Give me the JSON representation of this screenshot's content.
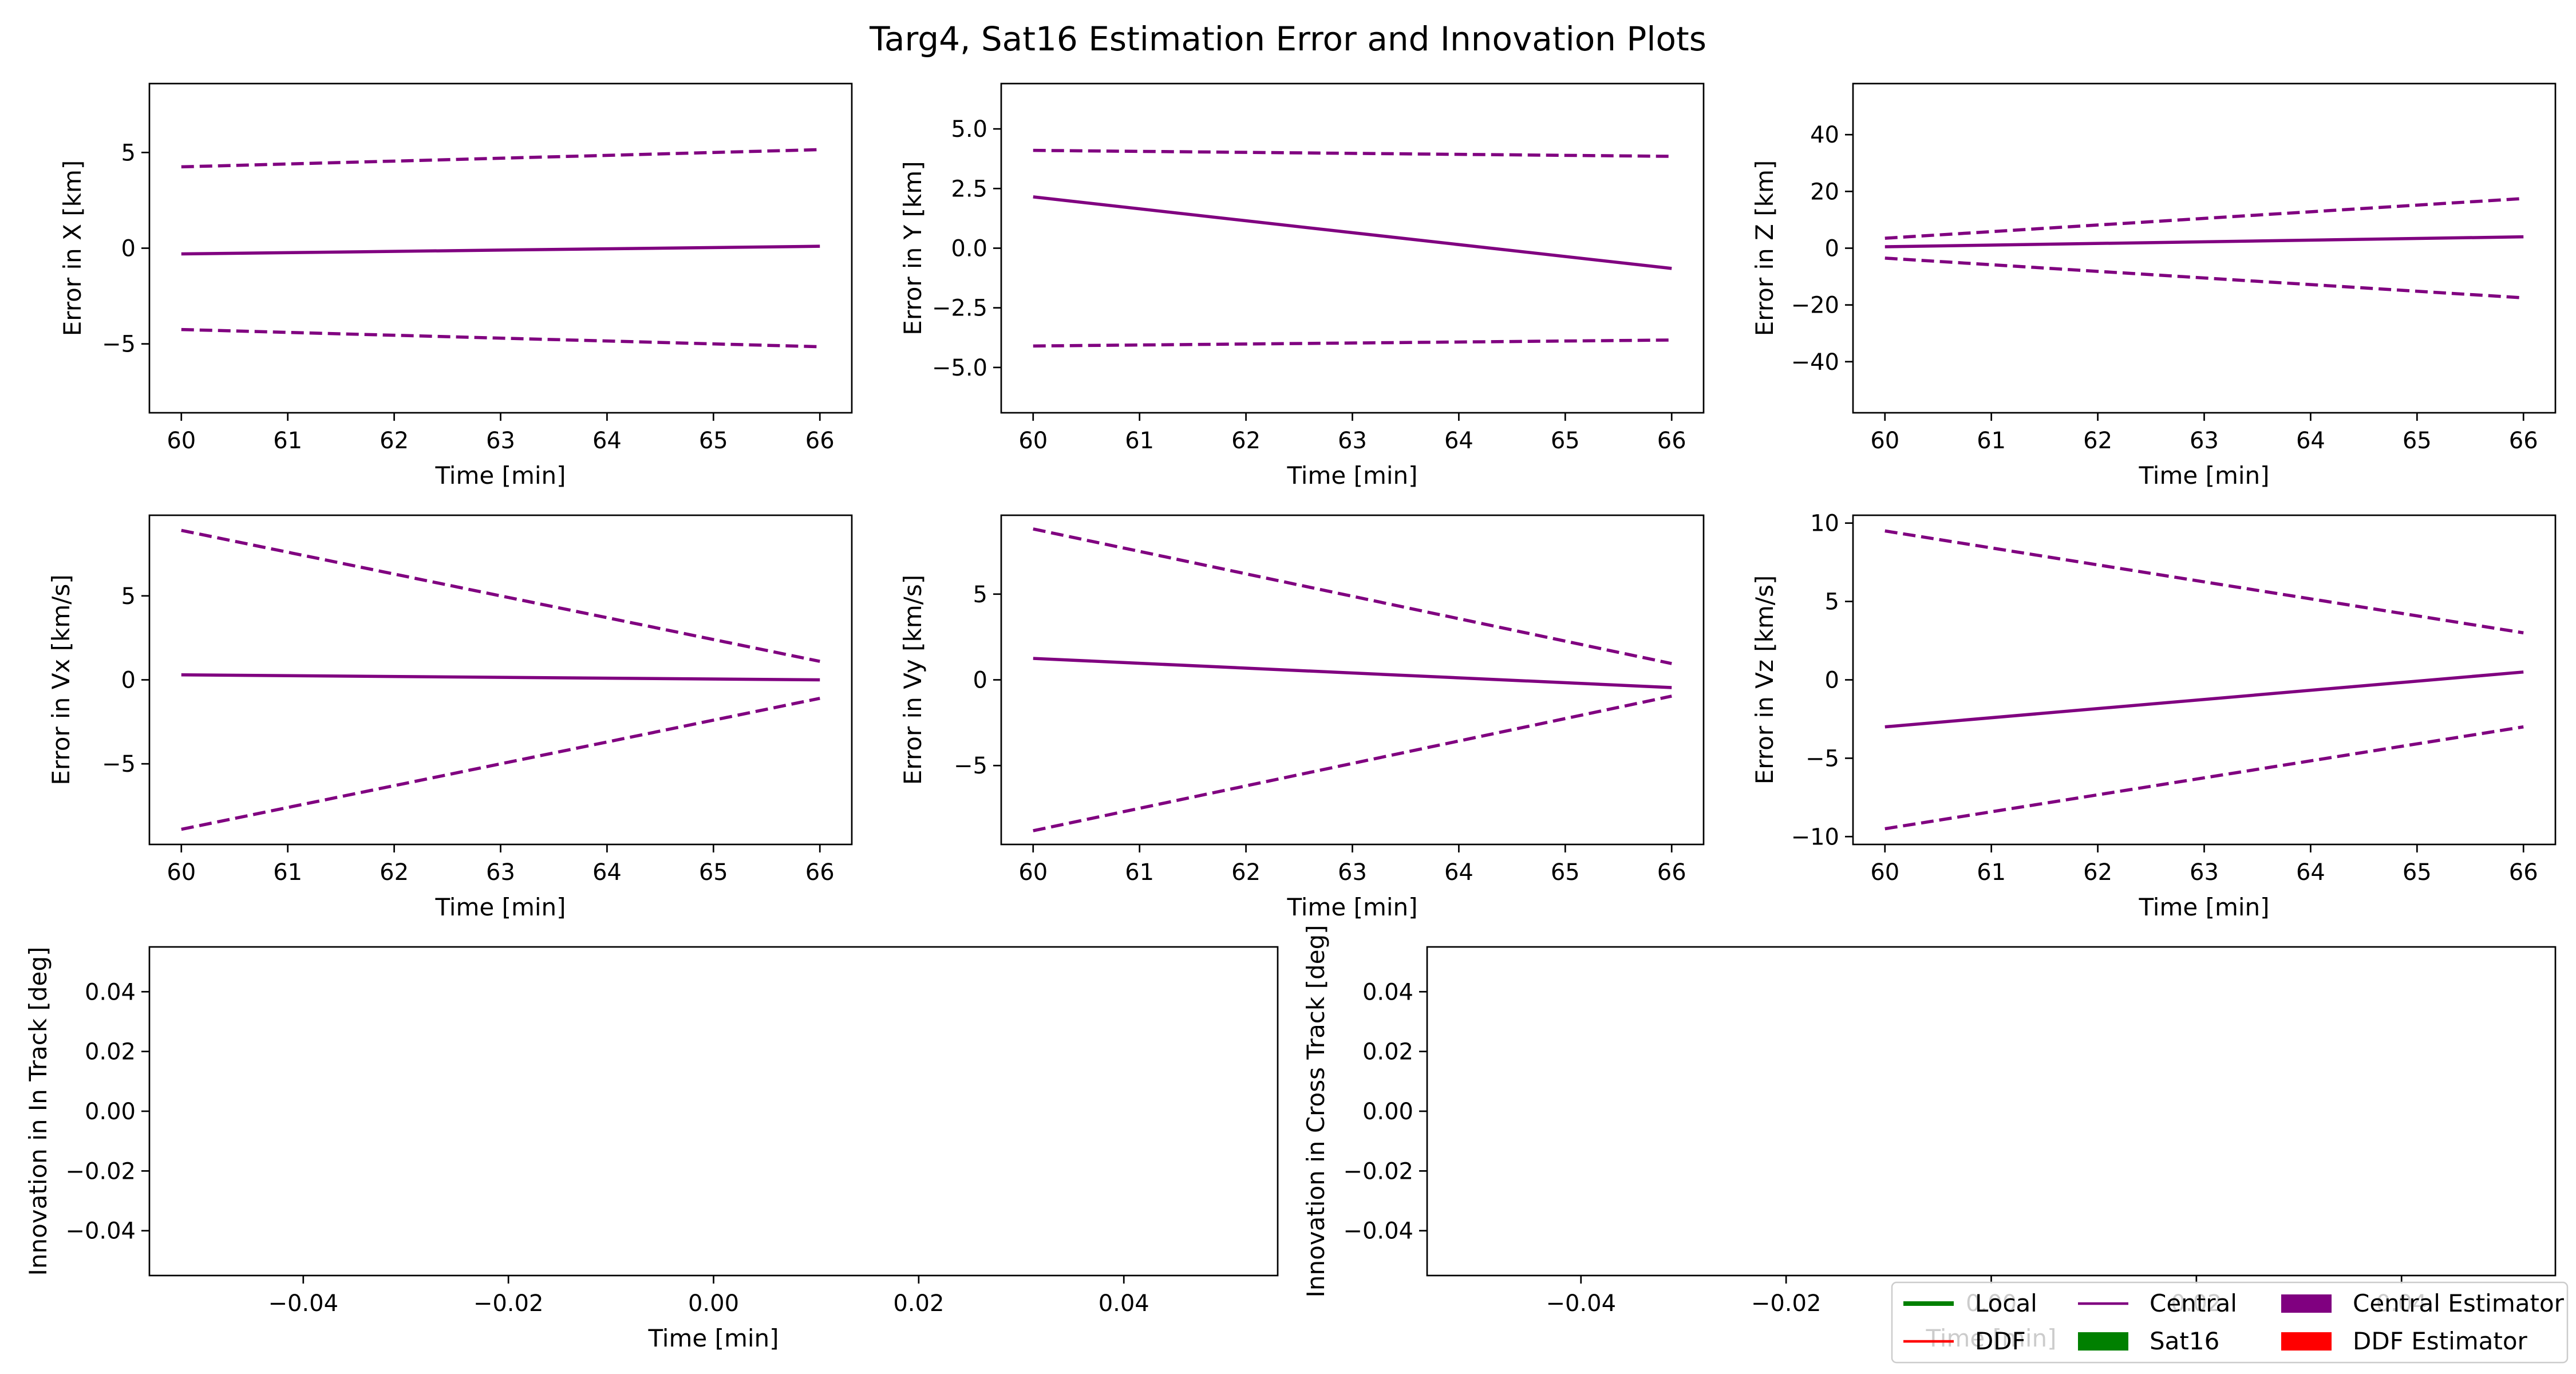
{
  "figure": {
    "title": "Targ4, Sat16 Estimation Error and Innovation Plots"
  },
  "colors": {
    "central": "#800080",
    "local": "#008000",
    "ddf": "#ff0000"
  },
  "chart_data": [
    {
      "id": "err-x",
      "type": "line",
      "xlabel": "Time [min]",
      "ylabel": "Error in X [km]",
      "xlim": [
        59.7,
        66.3
      ],
      "ylim": [
        -8.6,
        8.6
      ],
      "xticks": [
        60,
        61,
        62,
        63,
        64,
        65,
        66
      ],
      "yticks": [
        -5,
        0,
        5
      ],
      "series": [
        {
          "name": "Central",
          "color": "#800080",
          "style": "solid",
          "x": [
            60,
            66
          ],
          "y": [
            -0.3,
            0.1
          ]
        },
        {
          "color": "#800080",
          "style": "dashed",
          "x": [
            60,
            66
          ],
          "y": [
            4.25,
            5.15
          ]
        },
        {
          "color": "#800080",
          "style": "dashed",
          "x": [
            60,
            66
          ],
          "y": [
            -4.25,
            -5.15
          ]
        }
      ]
    },
    {
      "id": "err-y",
      "type": "line",
      "xlabel": "Time [min]",
      "ylabel": "Error in Y [km]",
      "xlim": [
        59.7,
        66.3
      ],
      "ylim": [
        -6.9,
        6.9
      ],
      "xticks": [
        60,
        61,
        62,
        63,
        64,
        65,
        66
      ],
      "yticks": [
        -5.0,
        -2.5,
        0.0,
        2.5,
        5.0
      ],
      "ytick_labels": [
        "−5.0",
        "−2.5",
        "0.0",
        "2.5",
        "5.0"
      ],
      "series": [
        {
          "name": "Central",
          "color": "#800080",
          "style": "solid",
          "x": [
            60,
            66
          ],
          "y": [
            2.15,
            -0.85
          ]
        },
        {
          "color": "#800080",
          "style": "dashed",
          "x": [
            60,
            66
          ],
          "y": [
            4.1,
            3.85
          ]
        },
        {
          "color": "#800080",
          "style": "dashed",
          "x": [
            60,
            66
          ],
          "y": [
            -4.1,
            -3.85
          ]
        }
      ]
    },
    {
      "id": "err-z",
      "type": "line",
      "xlabel": "Time [min]",
      "ylabel": "Error in Z [km]",
      "xlim": [
        59.7,
        66.3
      ],
      "ylim": [
        -58,
        58
      ],
      "xticks": [
        60,
        61,
        62,
        63,
        64,
        65,
        66
      ],
      "yticks": [
        -40,
        -20,
        0,
        20,
        40
      ],
      "series": [
        {
          "name": "Central",
          "color": "#800080",
          "style": "solid",
          "x": [
            60,
            66
          ],
          "y": [
            0.5,
            4
          ]
        },
        {
          "color": "#800080",
          "style": "dashed",
          "x": [
            60,
            66
          ],
          "y": [
            3.5,
            17.5
          ]
        },
        {
          "color": "#800080",
          "style": "dashed",
          "x": [
            60,
            66
          ],
          "y": [
            -3.5,
            -17.5
          ]
        }
      ]
    },
    {
      "id": "err-vx",
      "type": "line",
      "xlabel": "Time [min]",
      "ylabel": "Error in Vx [km/s]",
      "xlim": [
        59.7,
        66.3
      ],
      "ylim": [
        -9.8,
        9.8
      ],
      "xticks": [
        60,
        61,
        62,
        63,
        64,
        65,
        66
      ],
      "yticks": [
        -5,
        0,
        5
      ],
      "series": [
        {
          "name": "Central",
          "color": "#800080",
          "style": "solid",
          "x": [
            60,
            66
          ],
          "y": [
            0.3,
            0.0
          ]
        },
        {
          "color": "#800080",
          "style": "dashed",
          "x": [
            60,
            66
          ],
          "y": [
            8.9,
            1.1
          ]
        },
        {
          "color": "#800080",
          "style": "dashed",
          "x": [
            60,
            66
          ],
          "y": [
            -8.9,
            -1.1
          ]
        }
      ]
    },
    {
      "id": "err-vy",
      "type": "line",
      "xlabel": "Time [min]",
      "ylabel": "Error in Vy [km/s]",
      "xlim": [
        59.7,
        66.3
      ],
      "ylim": [
        -9.6,
        9.6
      ],
      "xticks": [
        60,
        61,
        62,
        63,
        64,
        65,
        66
      ],
      "yticks": [
        -5,
        0,
        5
      ],
      "series": [
        {
          "name": "Central",
          "color": "#800080",
          "style": "solid",
          "x": [
            60,
            66
          ],
          "y": [
            1.25,
            -0.45
          ]
        },
        {
          "color": "#800080",
          "style": "dashed",
          "x": [
            60,
            66
          ],
          "y": [
            8.8,
            0.95
          ]
        },
        {
          "color": "#800080",
          "style": "dashed",
          "x": [
            60,
            66
          ],
          "y": [
            -8.8,
            -0.95
          ]
        }
      ]
    },
    {
      "id": "err-vz",
      "type": "line",
      "xlabel": "Time [min]",
      "ylabel": "Error in Vz [km/s]",
      "xlim": [
        59.7,
        66.3
      ],
      "ylim": [
        -10.5,
        10.5
      ],
      "xticks": [
        60,
        61,
        62,
        63,
        64,
        65,
        66
      ],
      "yticks": [
        -10,
        -5,
        0,
        5,
        10
      ],
      "series": [
        {
          "name": "Central",
          "color": "#800080",
          "style": "solid",
          "x": [
            60,
            66
          ],
          "y": [
            -3.0,
            0.5
          ]
        },
        {
          "color": "#800080",
          "style": "dashed",
          "x": [
            60,
            66
          ],
          "y": [
            9.5,
            3.0
          ]
        },
        {
          "color": "#800080",
          "style": "dashed",
          "x": [
            60,
            66
          ],
          "y": [
            -9.5,
            -3.0
          ]
        }
      ]
    },
    {
      "id": "innov-in-track",
      "type": "line",
      "xlabel": "Time [min]",
      "ylabel": "Innovation in In Track [deg]",
      "xlim": [
        -0.055,
        0.055
      ],
      "ylim": [
        -0.055,
        0.055
      ],
      "xticks": [
        -0.04,
        -0.02,
        0.0,
        0.02,
        0.04
      ],
      "yticks": [
        -0.04,
        -0.02,
        0.0,
        0.02,
        0.04
      ],
      "series": []
    },
    {
      "id": "innov-cross-track",
      "type": "line",
      "xlabel": "Time [min]",
      "ylabel": "Innovation in Cross Track [deg]",
      "xlim": [
        -0.055,
        0.055
      ],
      "ylim": [
        -0.055,
        0.055
      ],
      "xticks": [
        -0.04,
        -0.02,
        0.0,
        0.02,
        0.04
      ],
      "yticks": [
        -0.04,
        -0.02,
        0.0,
        0.02,
        0.04
      ],
      "series": []
    }
  ],
  "legend": {
    "placement": "bottom-right",
    "entries": [
      {
        "label": "Local",
        "kind": "line",
        "color": "#008000"
      },
      {
        "label": "DDF",
        "kind": "line",
        "color": "#ff0000"
      },
      {
        "label": "Central",
        "kind": "line",
        "color": "#800080"
      },
      {
        "label": "Sat16",
        "kind": "patch",
        "color": "#008000"
      },
      {
        "label": "Central Estimator",
        "kind": "patch",
        "color": "#800080"
      },
      {
        "label": "DDF Estimator",
        "kind": "patch",
        "color": "#ff0000"
      }
    ]
  }
}
